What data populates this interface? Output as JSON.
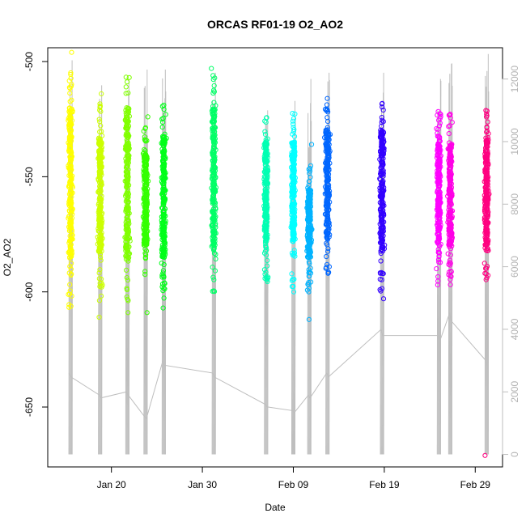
{
  "chart_data": {
    "type": "scatter",
    "title": "ORCAS RF01-19 O2_AO2",
    "xlabel": "Date",
    "ylabel": "O2_AO2",
    "x_axis": {
      "unit": "date",
      "range": [
        "2016-01-13",
        "2016-03-03"
      ],
      "ticks": [
        {
          "date": "2016-01-20",
          "label": "Jan 20"
        },
        {
          "date": "2016-01-30",
          "label": "Jan 30"
        },
        {
          "date": "2016-02-09",
          "label": "Feb 09"
        },
        {
          "date": "2016-02-19",
          "label": "Feb 19"
        },
        {
          "date": "2016-02-29",
          "label": "Feb 29"
        }
      ]
    },
    "y_axis": {
      "range": [
        -676,
        -494
      ],
      "ticks": [
        -500,
        -550,
        -600,
        -650
      ]
    },
    "y2_axis": {
      "range": [
        -400,
        13000
      ],
      "ticks": [
        0,
        2000,
        4000,
        6000,
        8000,
        10000,
        12000
      ],
      "line_color": "#bebebe"
    },
    "flights": [
      {
        "date": "2016-01-15T12:00",
        "color": "#FFFF00",
        "ymin": -607,
        "ymax": -503,
        "qlo": -585,
        "qhi": -520,
        "outliers": [
          -496
        ],
        "alt_max": 12600,
        "alt_join": 2600
      },
      {
        "date": "2016-01-18T18:00",
        "color": "#CCFF00",
        "ymin": -604,
        "ymax": -518,
        "qlo": -583,
        "qhi": -533,
        "outliers": [
          -514,
          -611
        ],
        "alt_max": 11800,
        "alt_join": 1900
      },
      {
        "date": "2016-01-21T18:00",
        "color": "#80FF00",
        "ymin": -606,
        "ymax": -506,
        "qlo": -585,
        "qhi": -520,
        "outliers": [
          -609
        ],
        "alt_max": 12000,
        "alt_join": 2000
      },
      {
        "date": "2016-01-23T18:00",
        "color": "#33FF00",
        "ymin": -593,
        "ymax": -528,
        "qlo": -580,
        "qhi": -540,
        "outliers": [
          -524,
          -609
        ],
        "alt_max": 12300,
        "alt_join": 1200
      },
      {
        "date": "2016-01-25T18:00",
        "color": "#00FF1A",
        "ymin": -604,
        "ymax": -518,
        "qlo": -585,
        "qhi": -532,
        "outliers": [
          -607
        ],
        "alt_max": 12300,
        "alt_join": 3000
      },
      {
        "date": "2016-01-31T06:00",
        "color": "#00FF66",
        "ymin": -600,
        "ymax": -505,
        "qlo": -582,
        "qhi": -520,
        "outliers": [
          -503
        ],
        "alt_max": 12200,
        "alt_join": 2600
      },
      {
        "date": "2016-02-06T00:00",
        "color": "#00FFB3",
        "ymin": -596,
        "ymax": -522,
        "qlo": -578,
        "qhi": -535,
        "outliers": [],
        "alt_max": 11000,
        "alt_join": 1600
      },
      {
        "date": "2016-02-09T00:00",
        "color": "#00FFFF",
        "ymin": -598,
        "ymax": -522,
        "qlo": -578,
        "qhi": -535,
        "outliers": [
          -600
        ],
        "alt_max": 11300,
        "alt_join": 1400
      },
      {
        "date": "2016-02-10T18:00",
        "color": "#00B3FF",
        "ymin": -600,
        "ymax": -545,
        "qlo": -585,
        "qhi": -555,
        "outliers": [
          -536,
          -612
        ],
        "alt_max": 12000,
        "alt_join": 1900
      },
      {
        "date": "2016-02-12T18:00",
        "color": "#0066FF",
        "ymin": -592,
        "ymax": -516,
        "qlo": -577,
        "qhi": -530,
        "outliers": [],
        "alt_max": 12200,
        "alt_join": 2600
      },
      {
        "date": "2016-02-18T18:00",
        "color": "#3300FF",
        "ymin": -600,
        "ymax": -517,
        "qlo": -582,
        "qhi": -530,
        "outliers": [
          -603
        ],
        "alt_max": 12200,
        "alt_join": 4000
      },
      {
        "date": "2016-02-25T00:00",
        "color": "#FF00FF",
        "ymin": -598,
        "ymax": -521,
        "qlo": -580,
        "qhi": -535,
        "outliers": [],
        "alt_max": 12000,
        "alt_join": 3800
      },
      {
        "date": "2016-02-26T06:00",
        "color": "#FF00E6",
        "ymin": -598,
        "ymax": -522,
        "qlo": -580,
        "qhi": -535,
        "outliers": [],
        "alt_max": 12500,
        "alt_join": 4500
      },
      {
        "date": "2016-03-01T06:00",
        "color": "#FF0080",
        "ymin": -597,
        "ymax": -520,
        "qlo": -580,
        "qhi": -533,
        "outliers": [
          -671
        ],
        "alt_max": 12800,
        "alt_join": 3000
      }
    ]
  }
}
